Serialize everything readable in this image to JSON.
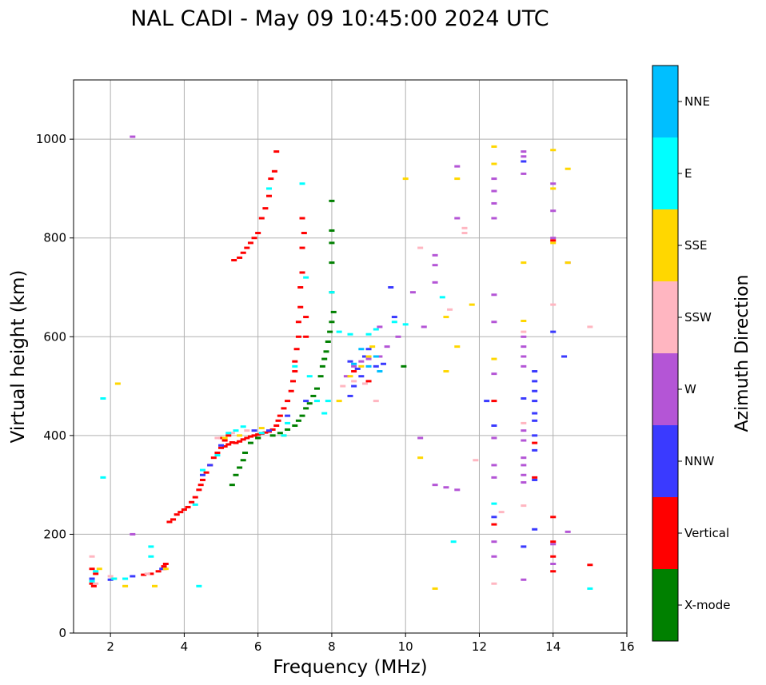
{
  "chart_data": {
    "type": "scatter",
    "title": "NAL CADI - May 09 10:45:00 2024 UTC",
    "xlabel": "Frequency (MHz)",
    "ylabel": "Virtual height (km)",
    "xlim": [
      1,
      16
    ],
    "ylim": [
      0,
      1120
    ],
    "xticks": [
      2,
      4,
      6,
      8,
      10,
      12,
      14,
      16
    ],
    "yticks": [
      0,
      200,
      400,
      600,
      800,
      1000
    ],
    "grid": true,
    "colorbar": {
      "label": "Azimuth Direction",
      "categories": [
        "X-mode",
        "Vertical",
        "NNW",
        "W",
        "SSW",
        "SSE",
        "E",
        "NNE"
      ],
      "colors": [
        "#008000",
        "#ff0000",
        "#3a3aff",
        "#b455d6",
        "#ffb6c1",
        "#ffd700",
        "#00ffff",
        "#00bfff"
      ]
    },
    "series": [
      {
        "name": "Vertical",
        "points": [
          [
            1.5,
            100
          ],
          [
            1.55,
            95
          ],
          [
            1.6,
            120
          ],
          [
            1.5,
            130
          ],
          [
            2.9,
            118
          ],
          [
            3.1,
            120
          ],
          [
            3.3,
            125
          ],
          [
            3.45,
            130
          ],
          [
            3.5,
            140
          ],
          [
            3.45,
            135
          ],
          [
            3.6,
            225
          ],
          [
            3.7,
            230
          ],
          [
            3.8,
            240
          ],
          [
            3.9,
            245
          ],
          [
            4.0,
            250
          ],
          [
            4.1,
            255
          ],
          [
            4.2,
            265
          ],
          [
            4.3,
            275
          ],
          [
            4.4,
            290
          ],
          [
            4.45,
            300
          ],
          [
            4.5,
            310
          ],
          [
            4.6,
            325
          ],
          [
            4.7,
            340
          ],
          [
            4.8,
            355
          ],
          [
            4.9,
            365
          ],
          [
            5.0,
            375
          ],
          [
            5.1,
            378
          ],
          [
            5.2,
            382
          ],
          [
            5.3,
            386
          ],
          [
            5.4,
            385
          ],
          [
            5.5,
            388
          ],
          [
            5.6,
            392
          ],
          [
            5.7,
            395
          ],
          [
            5.8,
            398
          ],
          [
            5.9,
            400
          ],
          [
            6.0,
            402
          ],
          [
            6.1,
            404
          ],
          [
            6.2,
            406
          ],
          [
            6.3,
            408
          ],
          [
            6.4,
            412
          ],
          [
            6.5,
            420
          ],
          [
            6.55,
            430
          ],
          [
            6.6,
            440
          ],
          [
            6.7,
            455
          ],
          [
            6.8,
            470
          ],
          [
            6.9,
            490
          ],
          [
            6.95,
            510
          ],
          [
            7.0,
            530
          ],
          [
            7.0,
            550
          ],
          [
            7.05,
            575
          ],
          [
            7.1,
            600
          ],
          [
            7.1,
            630
          ],
          [
            7.15,
            660
          ],
          [
            7.15,
            700
          ],
          [
            7.2,
            730
          ],
          [
            7.2,
            780
          ],
          [
            7.25,
            810
          ],
          [
            7.2,
            840
          ],
          [
            5.35,
            755
          ],
          [
            5.5,
            760
          ],
          [
            5.6,
            770
          ],
          [
            5.7,
            780
          ],
          [
            5.8,
            790
          ],
          [
            5.9,
            800
          ],
          [
            6.0,
            810
          ],
          [
            6.1,
            840
          ],
          [
            6.2,
            860
          ],
          [
            6.3,
            885
          ],
          [
            6.35,
            920
          ],
          [
            6.45,
            935
          ],
          [
            6.5,
            975
          ],
          [
            5.0,
            395
          ],
          [
            5.2,
            400
          ],
          [
            5.1,
            390
          ],
          [
            6.0,
            395
          ],
          [
            7.3,
            600
          ],
          [
            7.3,
            640
          ],
          [
            8.6,
            530
          ],
          [
            9.0,
            510
          ],
          [
            13.5,
            385
          ],
          [
            13.5,
            315
          ],
          [
            14.0,
            235
          ],
          [
            14.0,
            185
          ],
          [
            14.0,
            155
          ],
          [
            14.0,
            125
          ],
          [
            15.0,
            138
          ],
          [
            14.0,
            795
          ],
          [
            12.4,
            470
          ],
          [
            12.4,
            220
          ]
        ]
      },
      {
        "name": "X-mode",
        "points": [
          [
            5.3,
            300
          ],
          [
            5.4,
            320
          ],
          [
            5.5,
            335
          ],
          [
            5.6,
            350
          ],
          [
            5.65,
            365
          ],
          [
            5.8,
            385
          ],
          [
            6.0,
            395
          ],
          [
            6.4,
            400
          ],
          [
            6.6,
            405
          ],
          [
            6.8,
            412
          ],
          [
            7.0,
            420
          ],
          [
            7.1,
            430
          ],
          [
            7.2,
            440
          ],
          [
            7.3,
            455
          ],
          [
            7.4,
            465
          ],
          [
            7.5,
            480
          ],
          [
            7.6,
            495
          ],
          [
            7.7,
            520
          ],
          [
            7.75,
            540
          ],
          [
            7.8,
            555
          ],
          [
            7.85,
            570
          ],
          [
            7.9,
            590
          ],
          [
            7.95,
            610
          ],
          [
            8.0,
            630
          ],
          [
            8.05,
            650
          ],
          [
            8.0,
            690
          ],
          [
            8.0,
            750
          ],
          [
            8.0,
            790
          ],
          [
            8.0,
            815
          ],
          [
            8.0,
            875
          ],
          [
            9.95,
            540
          ]
        ]
      },
      {
        "name": "NNW",
        "points": [
          [
            1.5,
            110
          ],
          [
            2.0,
            108
          ],
          [
            2.6,
            115
          ],
          [
            3.4,
            130
          ],
          [
            4.5,
            320
          ],
          [
            4.7,
            340
          ],
          [
            5.0,
            380
          ],
          [
            5.9,
            410
          ],
          [
            6.3,
            410
          ],
          [
            6.8,
            440
          ],
          [
            7.3,
            470
          ],
          [
            8.5,
            480
          ],
          [
            8.6,
            500
          ],
          [
            8.8,
            520
          ],
          [
            8.9,
            560
          ],
          [
            9.0,
            575
          ],
          [
            9.2,
            540
          ],
          [
            9.4,
            545
          ],
          [
            8.5,
            550
          ],
          [
            8.7,
            535
          ],
          [
            9.6,
            700
          ],
          [
            9.7,
            640
          ],
          [
            12.2,
            470
          ],
          [
            12.4,
            420
          ],
          [
            12.4,
            235
          ],
          [
            13.2,
            955
          ],
          [
            13.5,
            530
          ],
          [
            13.5,
            510
          ],
          [
            13.5,
            490
          ],
          [
            13.5,
            470
          ],
          [
            13.5,
            445
          ],
          [
            13.5,
            430
          ],
          [
            13.5,
            400
          ],
          [
            13.5,
            370
          ],
          [
            13.5,
            310
          ],
          [
            13.5,
            210
          ],
          [
            13.2,
            175
          ],
          [
            14.0,
            610
          ],
          [
            14.3,
            560
          ],
          [
            13.2,
            475
          ]
        ]
      },
      {
        "name": "W",
        "points": [
          [
            2.6,
            1005
          ],
          [
            2.6,
            200
          ],
          [
            8.4,
            520
          ],
          [
            8.6,
            540
          ],
          [
            8.8,
            550
          ],
          [
            9.0,
            555
          ],
          [
            9.3,
            560
          ],
          [
            9.5,
            580
          ],
          [
            9.8,
            600
          ],
          [
            9.3,
            620
          ],
          [
            10.2,
            690
          ],
          [
            10.5,
            620
          ],
          [
            10.8,
            765
          ],
          [
            10.8,
            745
          ],
          [
            10.8,
            710
          ],
          [
            10.8,
            300
          ],
          [
            11.1,
            295
          ],
          [
            11.4,
            290
          ],
          [
            11.4,
            945
          ],
          [
            11.4,
            840
          ],
          [
            12.4,
            920
          ],
          [
            12.4,
            895
          ],
          [
            12.4,
            870
          ],
          [
            12.4,
            840
          ],
          [
            12.4,
            685
          ],
          [
            12.4,
            630
          ],
          [
            12.4,
            525
          ],
          [
            12.4,
            395
          ],
          [
            12.4,
            340
          ],
          [
            12.4,
            315
          ],
          [
            12.4,
            185
          ],
          [
            12.4,
            155
          ],
          [
            13.2,
            975
          ],
          [
            13.2,
            965
          ],
          [
            13.2,
            930
          ],
          [
            13.2,
            600
          ],
          [
            13.2,
            580
          ],
          [
            13.2,
            560
          ],
          [
            13.2,
            540
          ],
          [
            13.2,
            410
          ],
          [
            13.2,
            390
          ],
          [
            13.2,
            355
          ],
          [
            13.2,
            340
          ],
          [
            13.2,
            320
          ],
          [
            13.2,
            305
          ],
          [
            13.2,
            108
          ],
          [
            14.0,
            910
          ],
          [
            14.0,
            855
          ],
          [
            14.0,
            800
          ],
          [
            14.4,
            750
          ],
          [
            14.4,
            205
          ],
          [
            14.0,
            180
          ],
          [
            14.0,
            140
          ],
          [
            10.4,
            395
          ]
        ]
      },
      {
        "name": "SSW",
        "points": [
          [
            1.5,
            155
          ],
          [
            1.6,
            100
          ],
          [
            2.0,
            115
          ],
          [
            3.0,
            120
          ],
          [
            4.9,
            395
          ],
          [
            5.3,
            405
          ],
          [
            5.7,
            410
          ],
          [
            8.3,
            500
          ],
          [
            8.6,
            510
          ],
          [
            8.9,
            505
          ],
          [
            9.2,
            470
          ],
          [
            10.4,
            780
          ],
          [
            11.2,
            655
          ],
          [
            11.6,
            820
          ],
          [
            11.6,
            810
          ],
          [
            11.9,
            350
          ],
          [
            12.4,
            100
          ],
          [
            12.6,
            245
          ],
          [
            13.2,
            610
          ],
          [
            13.2,
            425
          ],
          [
            13.2,
            258
          ],
          [
            14.0,
            665
          ],
          [
            15.0,
            620
          ]
        ]
      },
      {
        "name": "SSE",
        "points": [
          [
            2.2,
            505
          ],
          [
            1.7,
            130
          ],
          [
            2.1,
            110
          ],
          [
            2.4,
            95
          ],
          [
            3.2,
            95
          ],
          [
            3.5,
            130
          ],
          [
            5.1,
            395
          ],
          [
            5.5,
            400
          ],
          [
            6.1,
            415
          ],
          [
            6.7,
            400
          ],
          [
            8.2,
            470
          ],
          [
            8.5,
            520
          ],
          [
            8.8,
            540
          ],
          [
            9.1,
            580
          ],
          [
            9.0,
            560
          ],
          [
            10.0,
            920
          ],
          [
            10.4,
            355
          ],
          [
            10.8,
            90
          ],
          [
            11.1,
            640
          ],
          [
            11.1,
            530
          ],
          [
            11.4,
            920
          ],
          [
            11.4,
            580
          ],
          [
            11.8,
            665
          ],
          [
            12.4,
            985
          ],
          [
            12.4,
            950
          ],
          [
            12.4,
            555
          ],
          [
            13.2,
            750
          ],
          [
            13.2,
            632
          ],
          [
            14.0,
            978
          ],
          [
            14.0,
            900
          ],
          [
            14.0,
            790
          ],
          [
            14.4,
            940
          ],
          [
            14.4,
            750
          ]
        ]
      },
      {
        "name": "E",
        "points": [
          [
            1.5,
            105
          ],
          [
            1.6,
            125
          ],
          [
            1.8,
            475
          ],
          [
            1.8,
            315
          ],
          [
            2.1,
            110
          ],
          [
            2.4,
            110
          ],
          [
            3.1,
            175
          ],
          [
            3.1,
            155
          ],
          [
            4.3,
            260
          ],
          [
            4.4,
            95
          ],
          [
            4.5,
            330
          ],
          [
            4.9,
            360
          ],
          [
            5.2,
            405
          ],
          [
            5.4,
            410
          ],
          [
            5.6,
            418
          ],
          [
            6.1,
            405
          ],
          [
            6.7,
            400
          ],
          [
            7.0,
            540
          ],
          [
            7.2,
            910
          ],
          [
            7.3,
            720
          ],
          [
            7.8,
            445
          ],
          [
            7.9,
            470
          ],
          [
            8.0,
            690
          ],
          [
            8.2,
            610
          ],
          [
            8.5,
            605
          ],
          [
            9.0,
            605
          ],
          [
            9.2,
            615
          ],
          [
            9.7,
            630
          ],
          [
            10.0,
            625
          ],
          [
            11.0,
            680
          ],
          [
            11.3,
            185
          ],
          [
            12.4,
            262
          ],
          [
            15.0,
            90
          ],
          [
            6.3,
            900
          ],
          [
            6.8,
            425
          ],
          [
            7.4,
            520
          ],
          [
            7.6,
            470
          ]
        ]
      },
      {
        "name": "NNE",
        "points": [
          [
            8.6,
            545
          ],
          [
            9.0,
            540
          ],
          [
            9.2,
            560
          ],
          [
            8.8,
            575
          ],
          [
            9.3,
            530
          ]
        ]
      }
    ]
  }
}
